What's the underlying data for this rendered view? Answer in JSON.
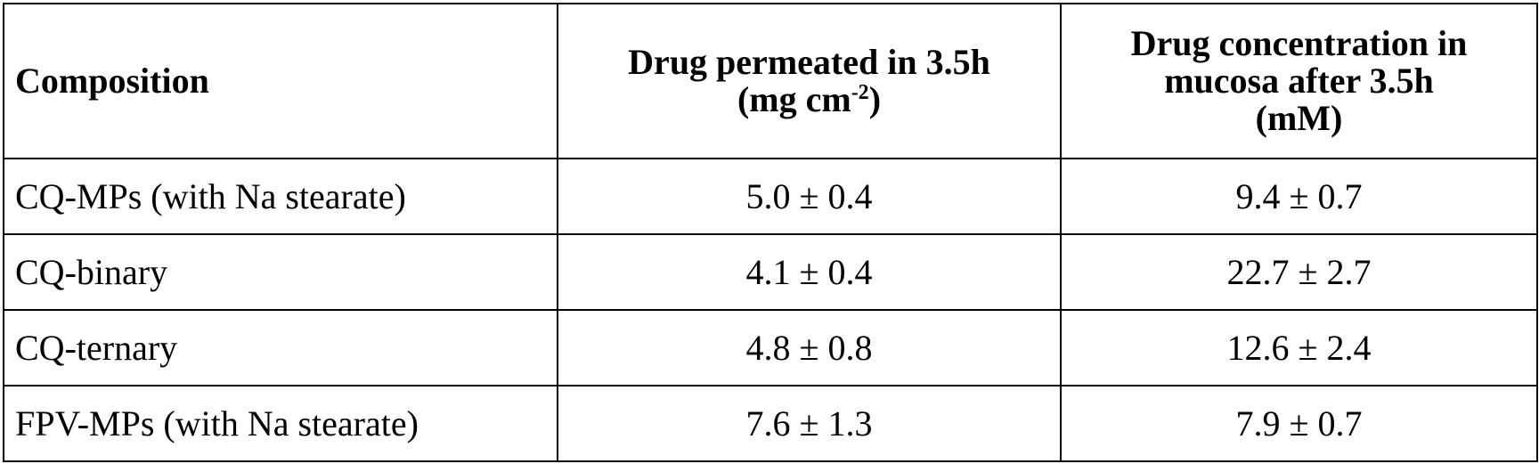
{
  "table": {
    "header": [
      {
        "lines": [
          "Composition"
        ]
      },
      {
        "lines": [
          "Drug permeated in 3.5h"
        ],
        "unit": {
          "before": "(mg cm",
          "sup": "-2",
          "after": ")"
        }
      },
      {
        "lines": [
          "Drug concentration in",
          "mucosa after 3.5h",
          "(mM)"
        ]
      }
    ],
    "rows": [
      [
        "CQ-MPs (with Na stearate)",
        "5.0 ± 0.4",
        "9.4 ± 0.7"
      ],
      [
        "CQ-binary",
        "4.1 ± 0.4",
        "22.7 ± 2.7"
      ],
      [
        "CQ-ternary",
        "4.8 ± 0.8",
        "12.6 ± 2.4"
      ],
      [
        "FPV-MPs (with Na stearate)",
        "7.6 ± 1.3",
        "7.9 ± 0.7"
      ]
    ]
  }
}
